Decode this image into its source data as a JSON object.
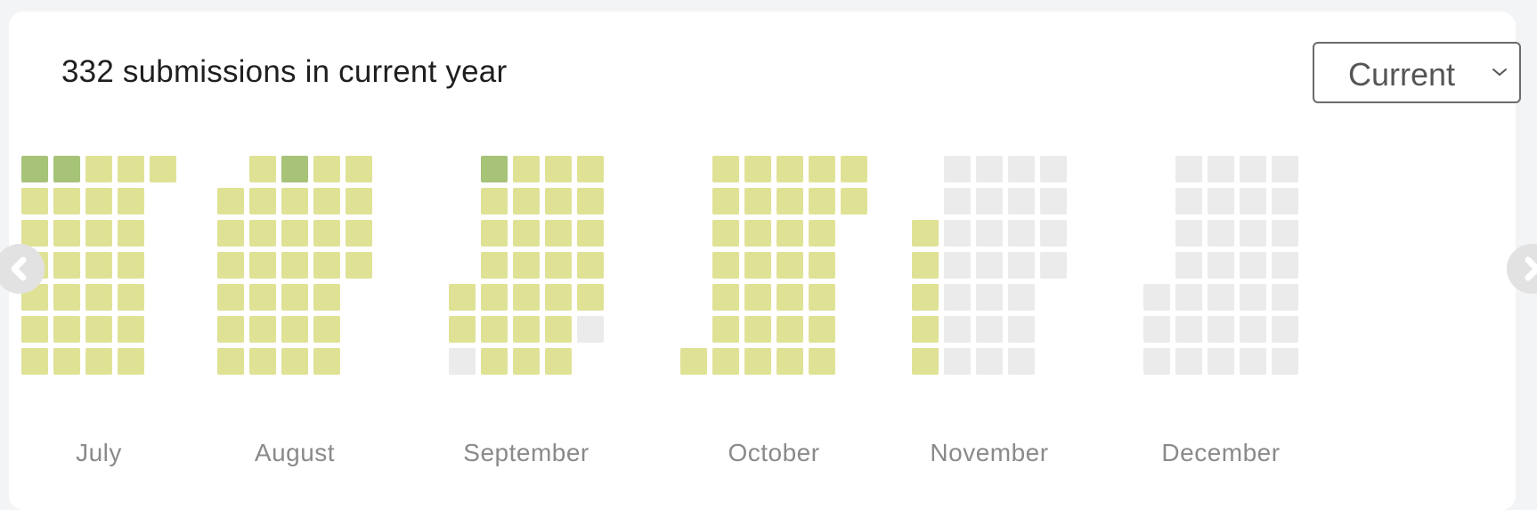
{
  "header": {
    "title": "332 submissions in current year"
  },
  "year_select": {
    "value": "Current"
  },
  "nav": {
    "prev_icon": "chevron-left-icon",
    "next_icon": "chevron-right-icon"
  },
  "colors": {
    "empty": "#ebebeb",
    "level1": "#dfe295",
    "level2": "#a6c378"
  },
  "heatmap": {
    "months": [
      {
        "name": "July",
        "weeks": [
          [
            2,
            1,
            1,
            1,
            1,
            1,
            1
          ],
          [
            2,
            1,
            1,
            1,
            1,
            1,
            1
          ],
          [
            1,
            1,
            1,
            1,
            1,
            1,
            1
          ],
          [
            1,
            1,
            1,
            1,
            1,
            1,
            1
          ],
          [
            1
          ]
        ]
      },
      {
        "name": "August",
        "weeks": [
          [
            null,
            1,
            1,
            1,
            1,
            1,
            1
          ],
          [
            1,
            1,
            1,
            1,
            1,
            1,
            1
          ],
          [
            2,
            1,
            1,
            1,
            1,
            1,
            1
          ],
          [
            1,
            1,
            1,
            1,
            1,
            1,
            1
          ],
          [
            1,
            1,
            1,
            1
          ]
        ]
      },
      {
        "name": "September",
        "weeks": [
          [
            null,
            null,
            null,
            null,
            1,
            1,
            0
          ],
          [
            2,
            1,
            1,
            1,
            1,
            1,
            1
          ],
          [
            1,
            1,
            1,
            1,
            1,
            1,
            1
          ],
          [
            1,
            1,
            1,
            1,
            1,
            1,
            1
          ],
          [
            1,
            1,
            1,
            1,
            1,
            0
          ]
        ]
      },
      {
        "name": "October",
        "weeks": [
          [
            null,
            null,
            null,
            null,
            null,
            null,
            1
          ],
          [
            1,
            1,
            1,
            1,
            1,
            1,
            1
          ],
          [
            1,
            1,
            1,
            1,
            1,
            1,
            1
          ],
          [
            1,
            1,
            1,
            1,
            1,
            1,
            1
          ],
          [
            1,
            1,
            1,
            1,
            1,
            1,
            1
          ],
          [
            1,
            1
          ]
        ]
      },
      {
        "name": "November",
        "weeks": [
          [
            null,
            null,
            1,
            1,
            1,
            1,
            1
          ],
          [
            0,
            0,
            0,
            0,
            0,
            0,
            0
          ],
          [
            0,
            0,
            0,
            0,
            0,
            0,
            0
          ],
          [
            0,
            0,
            0,
            0,
            0,
            0,
            0
          ],
          [
            0,
            0,
            0,
            0
          ]
        ]
      },
      {
        "name": "December",
        "weeks": [
          [
            null,
            null,
            null,
            null,
            0,
            0,
            0
          ],
          [
            0,
            0,
            0,
            0,
            0,
            0,
            0
          ],
          [
            0,
            0,
            0,
            0,
            0,
            0,
            0
          ],
          [
            0,
            0,
            0,
            0,
            0,
            0,
            0
          ],
          [
            0,
            0,
            0,
            0,
            0,
            0,
            0
          ]
        ]
      }
    ]
  }
}
